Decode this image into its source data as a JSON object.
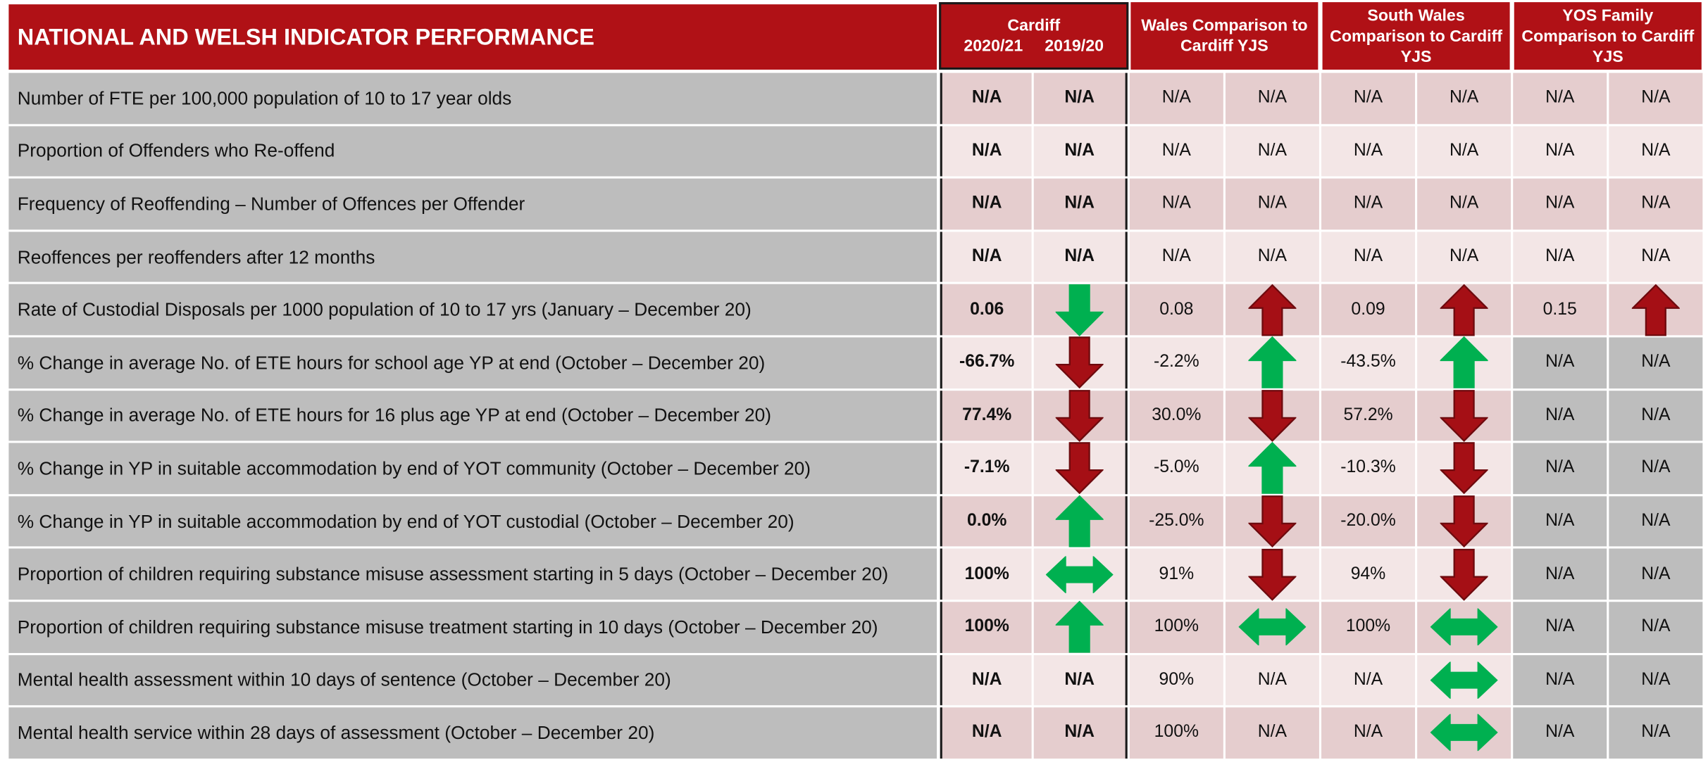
{
  "header": {
    "title": "NATIONAL AND WELSH INDICATOR PERFORMANCE",
    "groups": [
      {
        "title": "Cardiff",
        "subtitles": [
          "2020/21",
          "2019/20"
        ]
      },
      {
        "title": "Wales Comparison to Cardiff YJS"
      },
      {
        "title": "South Wales Comparison to Cardiff YJS"
      },
      {
        "title": "YOS Family Comparison to Cardiff YJS"
      }
    ]
  },
  "table": {
    "rows": [
      {
        "label": "Number of FTE per 100,000 population of 10 to 17 year olds",
        "cells": [
          "N/A",
          "N/A",
          "N/A",
          "N/A",
          "N/A",
          "N/A",
          "N/A",
          "N/A"
        ]
      },
      {
        "label": "Proportion of Offenders who Re-offend",
        "cells": [
          "N/A",
          "N/A",
          "N/A",
          "N/A",
          "N/A",
          "N/A",
          "N/A",
          "N/A"
        ]
      },
      {
        "label": "Frequency of Reoffending – Number of Offences per Offender",
        "cells": [
          "N/A",
          "N/A",
          "N/A",
          "N/A",
          "N/A",
          "N/A",
          "N/A",
          "N/A"
        ]
      },
      {
        "label": "Reoffences per reoffenders after 12 months",
        "cells": [
          "N/A",
          "N/A",
          "N/A",
          "N/A",
          "N/A",
          "N/A",
          "N/A",
          "N/A"
        ]
      },
      {
        "label": "Rate of Custodial Disposals per 1000 population of 10 to 17 yrs (January – December 20)",
        "cells": [
          "0.06",
          {
            "arrow": "down",
            "color": "green"
          },
          "0.08",
          {
            "arrow": "up",
            "color": "red"
          },
          "0.09",
          {
            "arrow": "up",
            "color": "red"
          },
          "0.15",
          {
            "arrow": "up",
            "color": "red"
          }
        ]
      },
      {
        "label": "% Change in average No. of ETE hours for school age YP at end (October – December 20)",
        "yos_shaded": true,
        "cells": [
          "-66.7%",
          {
            "arrow": "down",
            "color": "red"
          },
          "-2.2%",
          {
            "arrow": "up",
            "color": "green"
          },
          "-43.5%",
          {
            "arrow": "up",
            "color": "green"
          },
          "N/A",
          "N/A"
        ]
      },
      {
        "label": "% Change in average No. of ETE hours for 16 plus age YP at end (October – December 20)",
        "yos_shaded": true,
        "cells": [
          "77.4%",
          {
            "arrow": "down",
            "color": "red"
          },
          "30.0%",
          {
            "arrow": "down",
            "color": "red"
          },
          "57.2%",
          {
            "arrow": "down",
            "color": "red"
          },
          "N/A",
          "N/A"
        ]
      },
      {
        "label": "% Change in YP in suitable accommodation by end of YOT community (October – December 20)",
        "yos_shaded": true,
        "cells": [
          "-7.1%",
          {
            "arrow": "down",
            "color": "red"
          },
          "-5.0%",
          {
            "arrow": "up",
            "color": "green"
          },
          "-10.3%",
          {
            "arrow": "down",
            "color": "red"
          },
          "N/A",
          "N/A"
        ]
      },
      {
        "label": "% Change in YP in suitable accommodation by end of YOT custodial (October – December 20)",
        "yos_shaded": true,
        "cells": [
          "0.0%",
          {
            "arrow": "up",
            "color": "green"
          },
          "-25.0%",
          {
            "arrow": "down",
            "color": "red"
          },
          "-20.0%",
          {
            "arrow": "down",
            "color": "red"
          },
          "N/A",
          "N/A"
        ]
      },
      {
        "label": "Proportion of children requiring substance misuse assessment starting in 5 days (October – December 20)",
        "yos_shaded": true,
        "cells": [
          "100%",
          {
            "arrow": "both",
            "color": "green"
          },
          "91%",
          {
            "arrow": "down",
            "color": "red"
          },
          "94%",
          {
            "arrow": "down",
            "color": "red"
          },
          "N/A",
          "N/A"
        ]
      },
      {
        "label": "Proportion of children requiring substance misuse treatment starting in 10 days (October – December 20)",
        "yos_shaded": true,
        "cells": [
          "100%",
          {
            "arrow": "up",
            "color": "green"
          },
          "100%",
          {
            "arrow": "both",
            "color": "green"
          },
          "100%",
          {
            "arrow": "both",
            "color": "green"
          },
          "N/A",
          "N/A"
        ]
      },
      {
        "label": "Mental health assessment within 10 days of sentence (October – December 20)",
        "yos_shaded": true,
        "cells": [
          "N/A",
          "N/A",
          "90%",
          "N/A",
          "N/A",
          {
            "arrow": "both",
            "color": "green"
          },
          "N/A",
          "N/A"
        ]
      },
      {
        "label": "Mental health service within 28 days of assessment (October – December 20)",
        "yos_shaded": true,
        "cells": [
          "N/A",
          "N/A",
          "100%",
          "N/A",
          "N/A",
          {
            "arrow": "both",
            "color": "green"
          },
          "N/A",
          "N/A"
        ]
      }
    ]
  }
}
